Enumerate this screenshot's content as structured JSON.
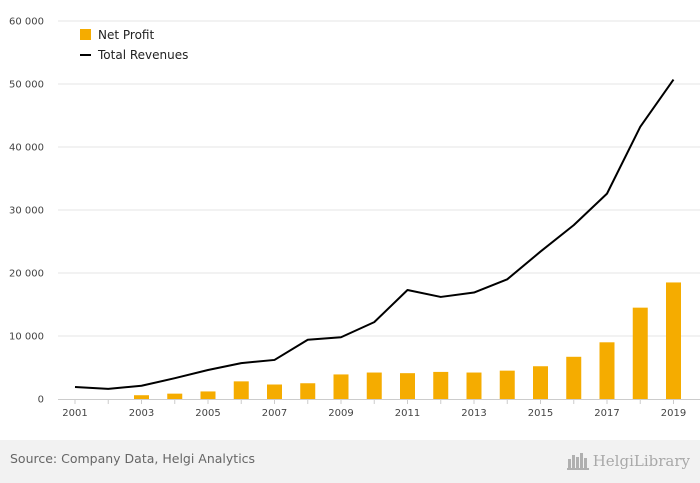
{
  "colors": {
    "bar": "#f5ac00",
    "line": "#000000",
    "grid": "#e6e6e6",
    "axis": "#cccccc"
  },
  "footer": {
    "source": "Source: Company Data, Helgi Analytics",
    "brand": "HelgiLibrary"
  },
  "chart_data": {
    "type": "bar+line",
    "x": [
      2001,
      2002,
      2003,
      2004,
      2005,
      2006,
      2007,
      2008,
      2009,
      2010,
      2011,
      2012,
      2013,
      2014,
      2015,
      2016,
      2017,
      2018,
      2019
    ],
    "x_tick_labels": [
      "2001",
      "2003",
      "2005",
      "2007",
      "2009",
      "2011",
      "2013",
      "2015",
      "2017",
      "2019"
    ],
    "y_tick_labels": [
      "0",
      "10 000",
      "20 000",
      "30 000",
      "40 000",
      "50 000",
      "60 000"
    ],
    "ylim": [
      0,
      60000
    ],
    "grid": true,
    "legend_position": "top-left",
    "series": [
      {
        "name": "Net Profit",
        "type": "bar",
        "values": [
          null,
          null,
          600,
          850,
          1200,
          2800,
          2300,
          2500,
          3900,
          4200,
          4100,
          4300,
          4200,
          4500,
          5200,
          6700,
          9000,
          14500,
          18500
        ]
      },
      {
        "name": "Total Revenues",
        "type": "line",
        "values": [
          1900,
          1600,
          2100,
          3300,
          4600,
          5700,
          6200,
          9400,
          9800,
          12200,
          17300,
          16200,
          16900,
          19000,
          23400,
          27600,
          32600,
          43200,
          50700
        ]
      }
    ]
  }
}
